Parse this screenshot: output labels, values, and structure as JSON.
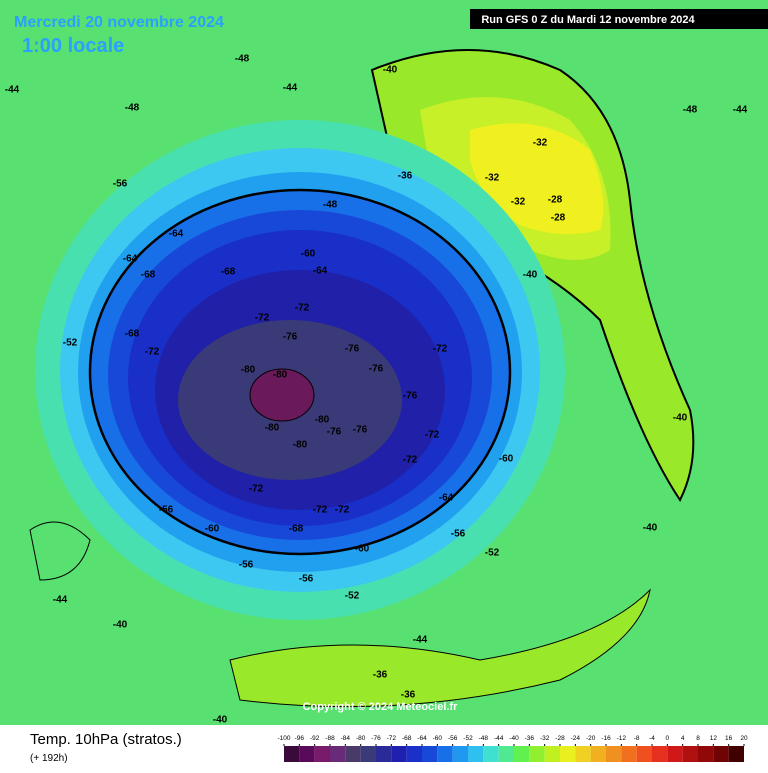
{
  "header": {
    "date": "Mercredi 20 novembre 2024",
    "time": "1:00 locale",
    "run": "Run GFS 0 Z du Mardi 12 novembre 2024"
  },
  "map": {
    "copyright": "Copyright © 2024 Meteociel.fr",
    "contour_labels": [
      -80,
      -80,
      -80,
      -80,
      -80,
      -76,
      -76,
      -76,
      -76,
      -76,
      -76,
      -72,
      -72,
      -72,
      -72,
      -72,
      -72,
      -72,
      -72,
      -72,
      -68,
      -68,
      -68,
      -68,
      -64,
      -64,
      -64,
      -64,
      -60,
      -60,
      -60,
      -60,
      -56,
      -56,
      -56,
      -56,
      -56,
      -52,
      -52,
      -52,
      -48,
      -48,
      -48,
      -48,
      -44,
      -44,
      -44,
      -44,
      -44,
      -40,
      -40,
      -40,
      -40,
      -40,
      -40,
      -36,
      -36,
      -36,
      -32,
      -32,
      -32,
      -28,
      -28
    ]
  },
  "legend": {
    "title": "Temp. 10hPa (stratos.)",
    "subtitle": "(+ 192h)",
    "ticks": [
      -100,
      -96,
      -92,
      -88,
      -84,
      -80,
      -76,
      -72,
      -68,
      -64,
      -60,
      -56,
      -52,
      -48,
      -44,
      -40,
      -36,
      -32,
      -28,
      -24,
      -20,
      -16,
      -12,
      -8,
      -4,
      0,
      4,
      8,
      12,
      16,
      20
    ],
    "colors": [
      "#3a0a3a",
      "#5a0a5a",
      "#7a1a6a",
      "#6a2a7a",
      "#4a3a6a",
      "#3a3a78",
      "#2a2a98",
      "#2020b0",
      "#1a30c8",
      "#1848d8",
      "#1870e8",
      "#2098f0",
      "#30c0f0",
      "#40e0d0",
      "#50e890",
      "#60f050",
      "#90f030",
      "#c0f020",
      "#e8f020",
      "#f0d020",
      "#f0b020",
      "#f09020",
      "#f07020",
      "#f05020",
      "#e83020",
      "#d01818",
      "#b01010",
      "#900808",
      "#700404",
      "#400000"
    ]
  }
}
